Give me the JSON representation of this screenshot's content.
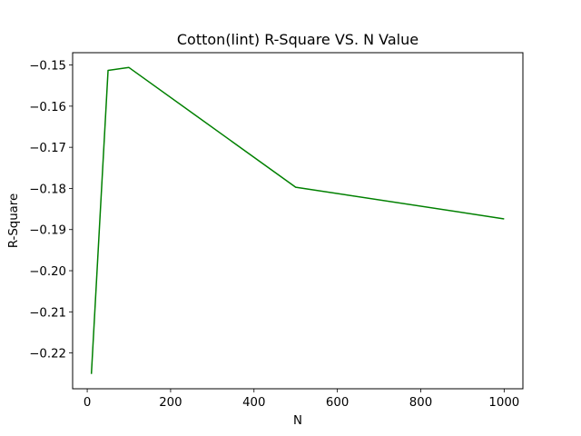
{
  "chart_data": {
    "type": "line",
    "title": "Cotton(lint) R-Square VS. N Value",
    "xlabel": "N",
    "ylabel": "R-Square",
    "xlim": [
      -35,
      1045
    ],
    "ylim": [
      -0.2287,
      -0.147
    ],
    "xticks": [
      0,
      200,
      400,
      600,
      800,
      1000
    ],
    "xtick_labels": [
      "0",
      "200",
      "400",
      "600",
      "800",
      "1000"
    ],
    "yticks": [
      -0.15,
      -0.16,
      -0.17,
      -0.18,
      -0.19,
      -0.2,
      -0.21,
      -0.22
    ],
    "ytick_labels": [
      "−0.15",
      "−0.16",
      "−0.17",
      "−0.18",
      "−0.19",
      "−0.20",
      "−0.21",
      "−0.22"
    ],
    "grid": false,
    "series": [
      {
        "color": "#008000",
        "x": [
          10,
          50,
          100,
          500,
          1000
        ],
        "y": [
          -0.2251,
          -0.1513,
          -0.1506,
          -0.1797,
          -0.1874
        ]
      }
    ]
  }
}
